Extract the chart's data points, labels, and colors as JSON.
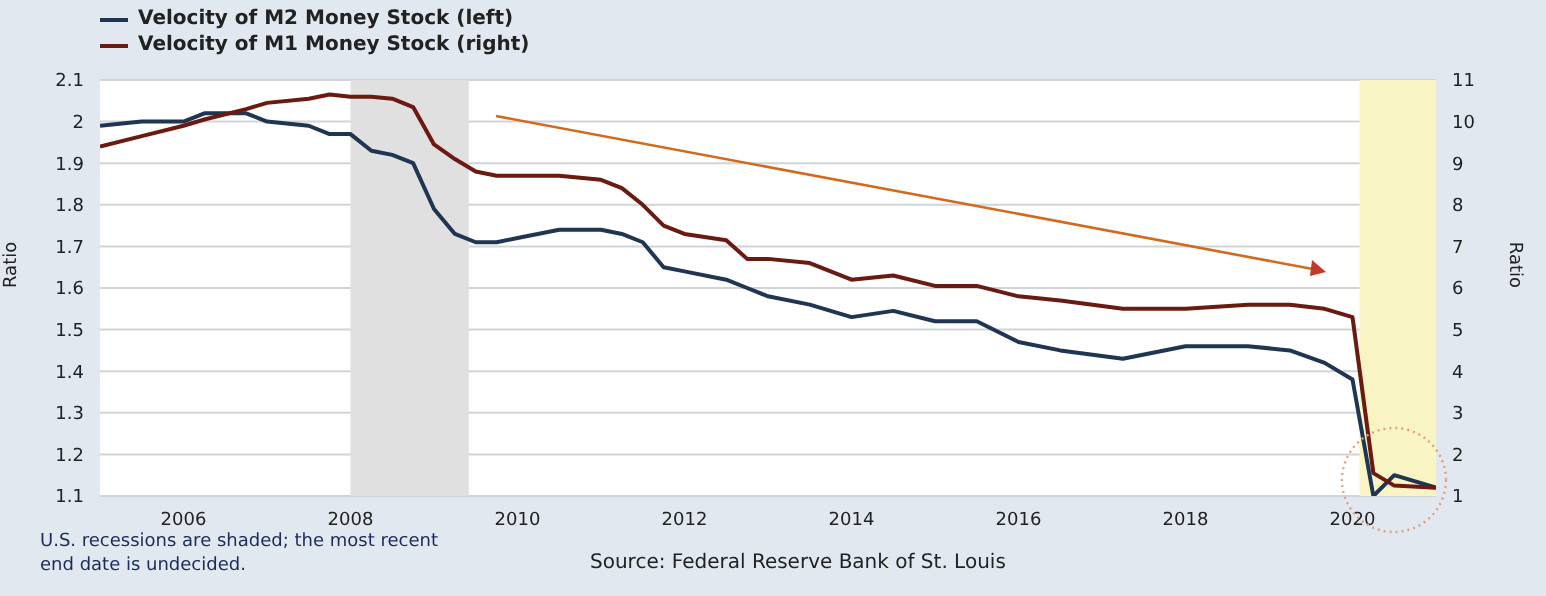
{
  "chart_data": {
    "type": "line",
    "x": [
      "2005-01",
      "2005-07",
      "2006-01",
      "2006-04",
      "2006-10",
      "2007-01",
      "2007-07",
      "2007-10",
      "2008-01",
      "2008-04",
      "2008-07",
      "2008-10",
      "2009-01",
      "2009-04",
      "2009-07",
      "2009-10",
      "2010-01",
      "2010-07",
      "2011-01",
      "2011-04",
      "2011-07",
      "2011-10",
      "2012-01",
      "2012-07",
      "2012-10",
      "2013-01",
      "2013-07",
      "2014-01",
      "2014-07",
      "2015-01",
      "2015-07",
      "2016-01",
      "2016-07",
      "2017-04",
      "2018-01",
      "2018-10",
      "2019-04",
      "2019-09",
      "2020-01",
      "2020-04",
      "2020-07",
      "2021-01"
    ],
    "series": [
      {
        "name": "Velocity of M2 Money Stock (left)",
        "color": "#1f3551",
        "values": [
          1.99,
          2.0,
          2.0,
          2.02,
          2.02,
          2.0,
          1.99,
          1.97,
          1.97,
          1.93,
          1.92,
          1.9,
          1.79,
          1.73,
          1.71,
          1.71,
          1.72,
          1.74,
          1.74,
          1.73,
          1.71,
          1.65,
          1.64,
          1.62,
          1.6,
          1.58,
          1.56,
          1.53,
          1.545,
          1.52,
          1.52,
          1.47,
          1.45,
          1.43,
          1.46,
          1.46,
          1.45,
          1.42,
          1.38,
          1.1,
          1.15,
          1.12
        ]
      },
      {
        "name": "Velocity of M1 Money Stock (right)",
        "color": "#6b1a12",
        "axis": "y2",
        "values": [
          9.4,
          9.65,
          9.9,
          10.05,
          10.3,
          10.45,
          10.55,
          10.65,
          10.6,
          10.6,
          10.55,
          10.35,
          9.45,
          9.1,
          8.8,
          8.7,
          8.7,
          8.7,
          8.6,
          8.4,
          8.0,
          7.5,
          7.3,
          7.15,
          6.7,
          6.7,
          6.6,
          6.2,
          6.3,
          6.05,
          6.05,
          5.8,
          5.7,
          5.5,
          5.5,
          5.6,
          5.6,
          5.5,
          5.3,
          1.55,
          1.25,
          1.2
        ]
      }
    ],
    "xlim": [
      "2005-01",
      "2021-01"
    ],
    "xticks": [
      {
        "value": "2006-01",
        "label": "2006"
      },
      {
        "value": "2008-01",
        "label": "2008"
      },
      {
        "value": "2010-01",
        "label": "2010"
      },
      {
        "value": "2012-01",
        "label": "2012"
      },
      {
        "value": "2014-01",
        "label": "2014"
      },
      {
        "value": "2016-01",
        "label": "2016"
      },
      {
        "value": "2018-01",
        "label": "2018"
      },
      {
        "value": "2020-01",
        "label": "2020"
      }
    ],
    "ylim": [
      1.1,
      2.1
    ],
    "yticks": [
      1.1,
      1.2,
      1.3,
      1.4,
      1.5,
      1.6,
      1.7,
      1.8,
      1.9,
      2.0,
      2.1
    ],
    "y2lim": [
      1,
      11
    ],
    "y2ticks": [
      1,
      2,
      3,
      4,
      5,
      6,
      7,
      8,
      9,
      10,
      11
    ],
    "ylabel": "Ratio",
    "y2label": "Ratio",
    "bands": [
      {
        "axis": "x",
        "from": "2008-01",
        "to": "2009-06",
        "color": "#e0e0e0"
      },
      {
        "axis": "x",
        "from": "2020-02",
        "to": "2021-01",
        "color": "#f8f4c4"
      }
    ],
    "annotations": [
      "U.S. recessions are shaded; the most recent end date is undecided.",
      "Source: Federal Reserve Bank of St. Louis"
    ],
    "grid": "y",
    "legend": "top left",
    "marker": "none",
    "line_style": "solid"
  }
}
